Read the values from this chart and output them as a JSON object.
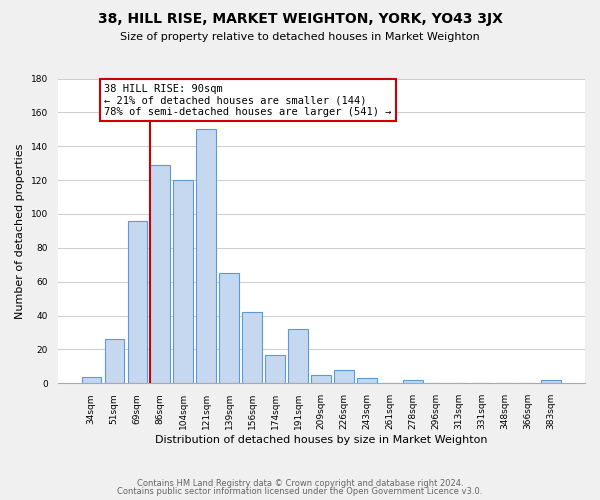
{
  "title": "38, HILL RISE, MARKET WEIGHTON, YORK, YO43 3JX",
  "subtitle": "Size of property relative to detached houses in Market Weighton",
  "xlabel": "Distribution of detached houses by size in Market Weighton",
  "ylabel": "Number of detached properties",
  "bar_labels": [
    "34sqm",
    "51sqm",
    "69sqm",
    "86sqm",
    "104sqm",
    "121sqm",
    "139sqm",
    "156sqm",
    "174sqm",
    "191sqm",
    "209sqm",
    "226sqm",
    "243sqm",
    "261sqm",
    "278sqm",
    "296sqm",
    "313sqm",
    "331sqm",
    "348sqm",
    "366sqm",
    "383sqm"
  ],
  "bar_values": [
    4,
    26,
    96,
    129,
    120,
    150,
    65,
    42,
    17,
    32,
    5,
    8,
    3,
    0,
    2,
    0,
    0,
    0,
    0,
    0,
    2
  ],
  "bar_color": "#c5d8f0",
  "bar_edge_color": "#5b9bd5",
  "highlight_line_color": "#cc0000",
  "highlight_line_bin": 3,
  "annotation_line1": "38 HILL RISE: 90sqm",
  "annotation_line2": "← 21% of detached houses are smaller (144)",
  "annotation_line3": "78% of semi-detached houses are larger (541) →",
  "annotation_box_color": "#ffffff",
  "annotation_box_edge": "#cc0000",
  "ylim": [
    0,
    180
  ],
  "yticks": [
    0,
    20,
    40,
    60,
    80,
    100,
    120,
    140,
    160,
    180
  ],
  "footer_line1": "Contains HM Land Registry data © Crown copyright and database right 2024.",
  "footer_line2": "Contains public sector information licensed under the Open Government Licence v3.0.",
  "background_color": "#f0f0f0",
  "plot_background_color": "#ffffff",
  "grid_color": "#cccccc",
  "title_fontsize": 10,
  "subtitle_fontsize": 8,
  "axis_label_fontsize": 8,
  "tick_fontsize": 6.5,
  "footer_fontsize": 6,
  "annotation_fontsize": 7.5
}
